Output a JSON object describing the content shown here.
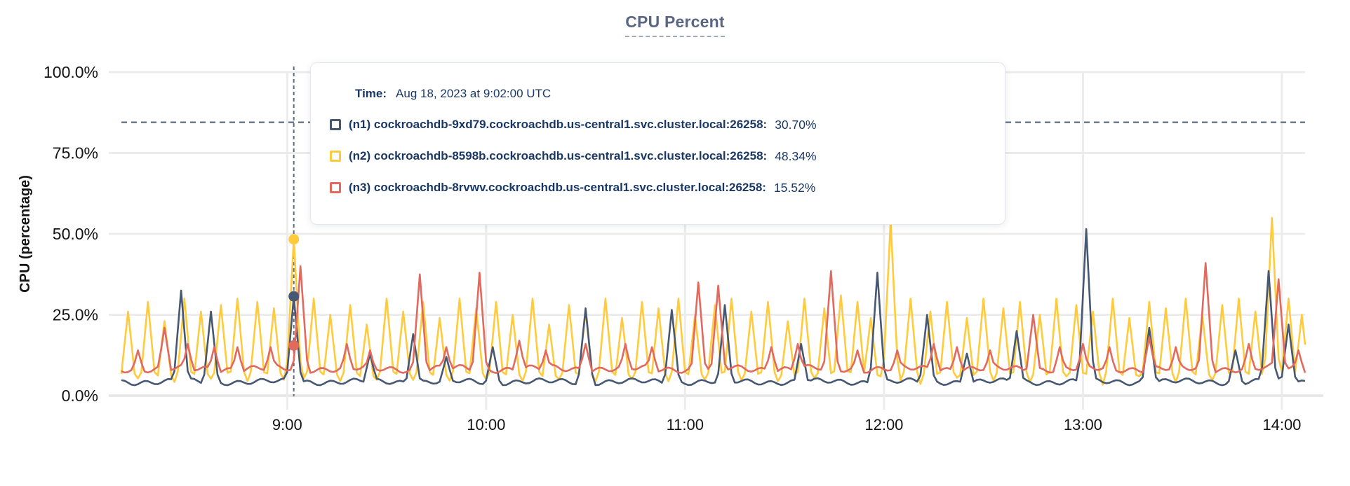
{
  "title": "CPU Percent",
  "tooltip": {
    "time_label": "Time:",
    "time_value": "Aug 18, 2023 at 9:02:00 UTC",
    "series": [
      {
        "label": "(n1) cockroachdb-9xd79.cockroachdb.us-central1.svc.cluster.local:26258:",
        "value": "30.70%"
      },
      {
        "label": "(n2) cockroachdb-8598b.cockroachdb.us-central1.svc.cluster.local:26258:",
        "value": "48.34%"
      },
      {
        "label": "(n3) cockroachdb-8rvwv.cockroachdb.us-central1.svc.cluster.local:26258:",
        "value": "15.52%"
      }
    ]
  },
  "colors": {
    "n1": "#475872",
    "n2": "#ffcb3d",
    "n3": "#e2695e",
    "grid": "#ececec",
    "axis_line": "#e8e8e8",
    "dashed": "#5e6d80",
    "axis_text": "#141414",
    "title": "#5a6784"
  },
  "chart_data": {
    "type": "line",
    "title": "CPU Percent",
    "xlabel": "",
    "ylabel": "CPU (percentage)",
    "ylim": [
      0,
      100
    ],
    "y_tick_pcts": [
      0,
      25,
      50,
      75,
      100
    ],
    "y_tick_labels": [
      "0.0%",
      "25.0%",
      "50.0%",
      "75.0%",
      "100.0%"
    ],
    "x_tick_minutes": [
      50,
      110,
      170,
      230,
      290,
      350
    ],
    "x_tick_labels": [
      "9:00",
      "10:00",
      "11:00",
      "12:00",
      "13:00",
      "14:00"
    ],
    "minutes_range": [
      0,
      357
    ],
    "threshold_pct": 84.5,
    "marker": {
      "minute": 52,
      "time_label": "Aug 18, 2023 at 9:02:00 UTC",
      "values": [
        30.7,
        48.34,
        15.52
      ]
    },
    "series": [
      {
        "name": "n1",
        "baseline": 4.3,
        "noise_amp": 1.1,
        "seed": 1.3,
        "spikes": [
          [
            18,
            32.5
          ],
          [
            27,
            26
          ],
          [
            52,
            30.7
          ],
          [
            75,
            13
          ],
          [
            88,
            19
          ],
          [
            98,
            12
          ],
          [
            112,
            15
          ],
          [
            140,
            27
          ],
          [
            166,
            26.5
          ],
          [
            182,
            28
          ],
          [
            205,
            16
          ],
          [
            228,
            38
          ],
          [
            243,
            25
          ],
          [
            255,
            13
          ],
          [
            270,
            20
          ],
          [
            291,
            51.5
          ],
          [
            310,
            21
          ],
          [
            336,
            14
          ],
          [
            346,
            38.5
          ],
          [
            352,
            22
          ]
        ]
      },
      {
        "name": "n2",
        "baseline": 4.8,
        "noise_amp": 1.4,
        "seed": 2.1,
        "spikes": [
          [
            2,
            26
          ],
          [
            8,
            29
          ],
          [
            13,
            23
          ],
          [
            19,
            30
          ],
          [
            24,
            26
          ],
          [
            30,
            28
          ],
          [
            35,
            30
          ],
          [
            41,
            29
          ],
          [
            46,
            27
          ],
          [
            52,
            48.34
          ],
          [
            58,
            30
          ],
          [
            63,
            25
          ],
          [
            69,
            28
          ],
          [
            74,
            22
          ],
          [
            80,
            30
          ],
          [
            85,
            26
          ],
          [
            91,
            29
          ],
          [
            96,
            24
          ],
          [
            102,
            30
          ],
          [
            107,
            27
          ],
          [
            113,
            29
          ],
          [
            118,
            25
          ],
          [
            124,
            30
          ],
          [
            129,
            22
          ],
          [
            135,
            28
          ],
          [
            140,
            26
          ],
          [
            146,
            30
          ],
          [
            151,
            24
          ],
          [
            157,
            29
          ],
          [
            162,
            27
          ],
          [
            168,
            30
          ],
          [
            173,
            25
          ],
          [
            179,
            28
          ],
          [
            184,
            30
          ],
          [
            190,
            26
          ],
          [
            195,
            29
          ],
          [
            201,
            23
          ],
          [
            206,
            30
          ],
          [
            212,
            27
          ],
          [
            217,
            31
          ],
          [
            222,
            29
          ],
          [
            226,
            24
          ],
          [
            232,
            54
          ],
          [
            238,
            30
          ],
          [
            244,
            26
          ],
          [
            249,
            29
          ],
          [
            255,
            24
          ],
          [
            260,
            30
          ],
          [
            266,
            27
          ],
          [
            271,
            29
          ],
          [
            277,
            25
          ],
          [
            282,
            30
          ],
          [
            288,
            28
          ],
          [
            293,
            26
          ],
          [
            299,
            30
          ],
          [
            304,
            24
          ],
          [
            310,
            29
          ],
          [
            315,
            27
          ],
          [
            321,
            30
          ],
          [
            326,
            25
          ],
          [
            332,
            28
          ],
          [
            337,
            30
          ],
          [
            342,
            26
          ],
          [
            347,
            55
          ],
          [
            352,
            30
          ],
          [
            356,
            25
          ]
        ]
      },
      {
        "name": "n3",
        "baseline": 8.3,
        "noise_amp": 1.3,
        "seed": 3.7,
        "spikes": [
          [
            5,
            14
          ],
          [
            13,
            21
          ],
          [
            20,
            16
          ],
          [
            28,
            15
          ],
          [
            35,
            15
          ],
          [
            45,
            15
          ],
          [
            54,
            40
          ],
          [
            68,
            16
          ],
          [
            75,
            14
          ],
          [
            90,
            37.5
          ],
          [
            98,
            15
          ],
          [
            108,
            38
          ],
          [
            120,
            17
          ],
          [
            128,
            14
          ],
          [
            140,
            16
          ],
          [
            152,
            16
          ],
          [
            160,
            15
          ],
          [
            174,
            35
          ],
          [
            180,
            34
          ],
          [
            196,
            15
          ],
          [
            204,
            16
          ],
          [
            214,
            38.5
          ],
          [
            222,
            14
          ],
          [
            234,
            14
          ],
          [
            245,
            16
          ],
          [
            252,
            15
          ],
          [
            262,
            14
          ],
          [
            275,
            25
          ],
          [
            283,
            15
          ],
          [
            290,
            16
          ],
          [
            298,
            15
          ],
          [
            310,
            18
          ],
          [
            318,
            15
          ],
          [
            327,
            41
          ],
          [
            340,
            16
          ],
          [
            349,
            36
          ],
          [
            355,
            14
          ]
        ]
      }
    ]
  }
}
